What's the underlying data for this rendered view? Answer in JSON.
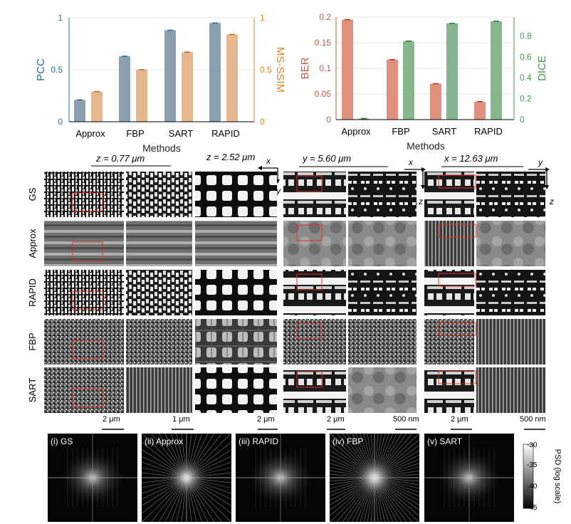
{
  "chart_data": [
    {
      "type": "bar",
      "title": "",
      "xlabel": "Methods",
      "ylabel": "PCC",
      "ylabel_right": "MS-SSIM",
      "categories": [
        "Approx",
        "FBP",
        "SART",
        "RAPID"
      ],
      "ylim": [
        0,
        1
      ],
      "yticks": [
        "0",
        "0.5",
        "1"
      ],
      "yticks_right": [
        "0",
        "0.5",
        "1"
      ],
      "grid": true,
      "series": [
        {
          "name": "PCC",
          "axis": "left",
          "values": [
            0.21,
            0.63,
            0.88,
            0.95
          ]
        },
        {
          "name": "MS-SSIM",
          "axis": "right",
          "values": [
            0.29,
            0.5,
            0.67,
            0.84
          ]
        }
      ]
    },
    {
      "type": "bar",
      "title": "",
      "xlabel": "Methods",
      "ylabel": "BER",
      "ylabel_right": "DICE",
      "categories": [
        "Approx",
        "FBP",
        "SART",
        "RAPID"
      ],
      "ylim": [
        0,
        0.2
      ],
      "ylim_right": [
        0,
        0.98
      ],
      "yticks": [
        "0",
        "0.05",
        "0.1",
        "0.15",
        "0.2"
      ],
      "yticks_right": [
        "0",
        "0.2",
        "0.4",
        "0.6",
        "0.8"
      ],
      "grid": true,
      "series": [
        {
          "name": "BER",
          "axis": "left",
          "values": [
            0.195,
            0.117,
            0.07,
            0.035
          ]
        },
        {
          "name": "DICE",
          "axis": "right",
          "values": [
            0.01,
            0.75,
            0.92,
            0.94
          ]
        }
      ]
    }
  ],
  "colors": {
    "pcc": "#8c9fb1",
    "msssim": "#e6b78e",
    "ber": "#e0907d",
    "dice": "#86b68d",
    "pcc_label": "#2c6f8e",
    "msssim_label": "#d9892f",
    "ber_label": "#c8543e",
    "dice_label": "#3e9a4b",
    "roi": "#e0302a"
  },
  "slices": {
    "headers": [
      "z = 0.77 μm",
      "z = 2.52 μm",
      "y = 5.60 μm",
      "x = 12.63 μm"
    ],
    "axis_letters": {
      "g1_h": "x",
      "g1_v": "y",
      "g2_h": "x",
      "g2_v": "z",
      "g3_h": "y",
      "g3_v": "z"
    },
    "rows": [
      "GS",
      "Approx",
      "RAPID",
      "FBP",
      "SART"
    ],
    "scalebars": [
      "2 μm",
      "1 μm",
      "2 μm",
      "2 μm",
      "500 nm",
      "2 μm",
      "500 nm"
    ]
  },
  "psd": {
    "panels": [
      "(i) GS",
      "(ii) Approx",
      "(iii) RAPID",
      "(iv) FBP",
      "(v) SART"
    ],
    "colorbar_label": "PSD (log scale)",
    "colorbar_ticks": [
      "-30",
      "-35",
      "-40",
      "-45"
    ]
  }
}
